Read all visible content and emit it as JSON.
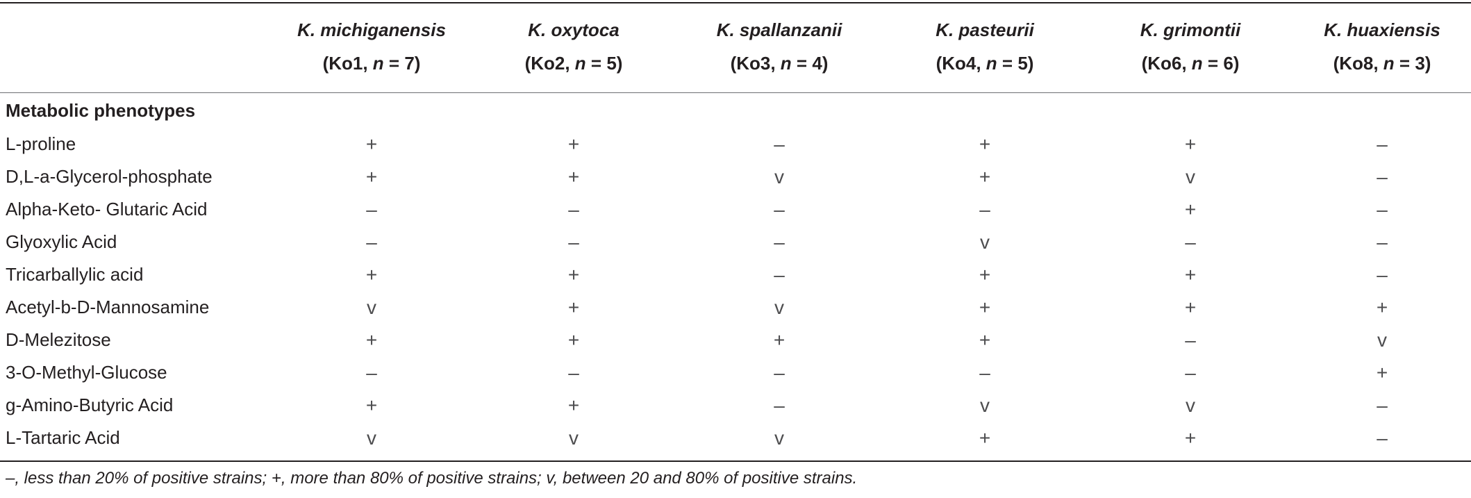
{
  "table": {
    "columns": [
      {
        "species": "K. michiganensis",
        "strain_prefix": "(Ko1, ",
        "n_symbol": "n",
        "n_value": " = 7)"
      },
      {
        "species": "K. oxytoca",
        "strain_prefix": "(Ko2, ",
        "n_symbol": "n",
        "n_value": " = 5)"
      },
      {
        "species": "K. spallanzanii",
        "strain_prefix": "(Ko3, ",
        "n_symbol": "n",
        "n_value": " = 4)"
      },
      {
        "species": "K. pasteurii",
        "strain_prefix": "(Ko4, ",
        "n_symbol": "n",
        "n_value": " = 5)"
      },
      {
        "species": "K. grimontii",
        "strain_prefix": "(Ko6, ",
        "n_symbol": "n",
        "n_value": " = 6)"
      },
      {
        "species": "K. huaxiensis",
        "strain_prefix": "(Ko8, ",
        "n_symbol": "n",
        "n_value": " = 3)"
      }
    ],
    "section_title": "Metabolic phenotypes",
    "rows": [
      {
        "label": "L-proline",
        "values": [
          "+",
          "+",
          "–",
          "+",
          "+",
          "–"
        ]
      },
      {
        "label": "D,L-a-Glycerol-phosphate",
        "values": [
          "+",
          "+",
          "v",
          "+",
          "v",
          "–"
        ]
      },
      {
        "label": "Alpha-Keto- Glutaric Acid",
        "values": [
          "–",
          "–",
          "–",
          "–",
          "+",
          "–"
        ]
      },
      {
        "label": "Glyoxylic Acid",
        "values": [
          "–",
          "–",
          "–",
          "v",
          "–",
          "–"
        ]
      },
      {
        "label": "Tricarballylic acid",
        "values": [
          "+",
          "+",
          "–",
          "+",
          "+",
          "–"
        ]
      },
      {
        "label": "Acetyl-b-D-Mannosamine",
        "values": [
          "v",
          "+",
          "v",
          "+",
          "+",
          "+"
        ]
      },
      {
        "label": "D-Melezitose",
        "values": [
          "+",
          "+",
          "+",
          "+",
          "–",
          "v"
        ]
      },
      {
        "label": "3-O-Methyl-Glucose",
        "values": [
          "–",
          "–",
          "–",
          "–",
          "–",
          "+"
        ]
      },
      {
        "label": "g-Amino-Butyric Acid",
        "values": [
          "+",
          "+",
          "–",
          "v",
          "v",
          "–"
        ]
      },
      {
        "label": "L-Tartaric Acid",
        "values": [
          "v",
          "v",
          "v",
          "+",
          "+",
          "–"
        ]
      }
    ]
  },
  "footnote": "–, less than 20% of positive strains; +, more than 80% of positive strains; v, between 20 and 80% of positive strains."
}
